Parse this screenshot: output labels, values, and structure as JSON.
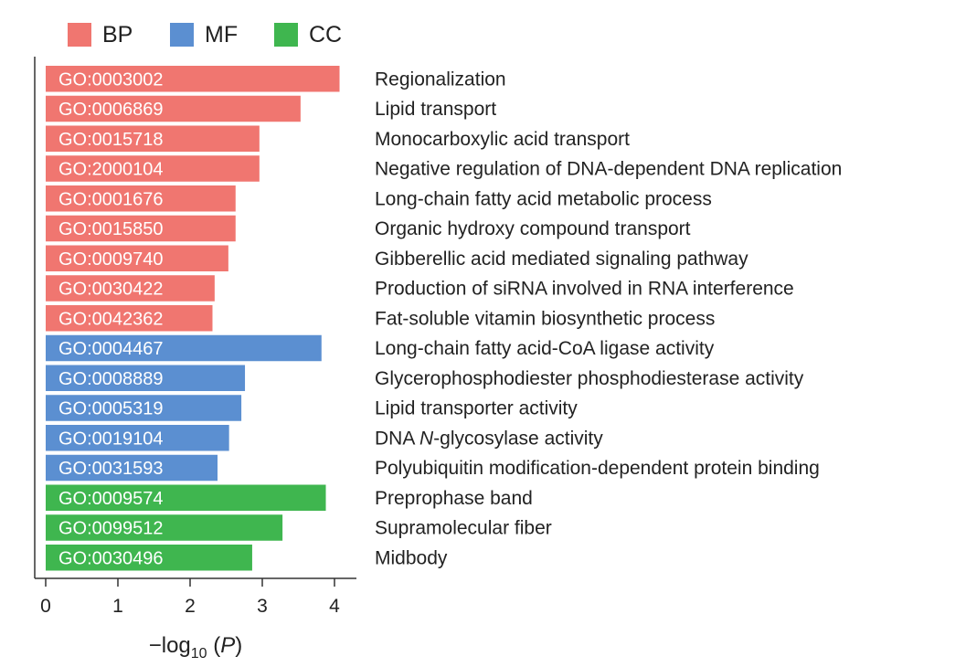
{
  "chart_data": {
    "type": "bar",
    "orientation": "horizontal",
    "title": "",
    "xlabel_parts": {
      "pre": "−log",
      "sub": "10",
      "post_open": " (",
      "italic": "P",
      "post_close": ")"
    },
    "xlim": [
      0,
      4.2
    ],
    "xticks": [
      "0",
      "1",
      "2",
      "3",
      "4"
    ],
    "legend": {
      "placement": "top-left",
      "entries": [
        {
          "key": "BP",
          "label": "BP",
          "color": "#f07670"
        },
        {
          "key": "MF",
          "label": "MF",
          "color": "#5b8fd1"
        },
        {
          "key": "CC",
          "label": "CC",
          "color": "#3fb64f"
        }
      ]
    },
    "bars": [
      {
        "id": "GO:0003002",
        "term": "Regionalization",
        "category": "BP",
        "value": 4.07
      },
      {
        "id": "GO:0006869",
        "term": "Lipid transport",
        "category": "BP",
        "value": 3.53
      },
      {
        "id": "GO:0015718",
        "term": "Monocarboxylic acid transport",
        "category": "BP",
        "value": 2.96
      },
      {
        "id": "GO:2000104",
        "term": "Negative regulation of DNA-dependent DNA replication",
        "category": "BP",
        "value": 2.96
      },
      {
        "id": "GO:0001676",
        "term": "Long-chain fatty acid metabolic process",
        "category": "BP",
        "value": 2.63
      },
      {
        "id": "GO:0015850",
        "term": "Organic hydroxy compound transport",
        "category": "BP",
        "value": 2.63
      },
      {
        "id": "GO:0009740",
        "term": "Gibberellic acid mediated signaling pathway",
        "category": "BP",
        "value": 2.53
      },
      {
        "id": "GO:0030422",
        "term": "Production of siRNA involved in RNA interference",
        "category": "BP",
        "value": 2.34
      },
      {
        "id": "GO:0042362",
        "term": "Fat-soluble vitamin biosynthetic process",
        "category": "BP",
        "value": 2.31
      },
      {
        "id": "GO:0004467",
        "term": "Long-chain fatty acid-CoA ligase activity",
        "category": "MF",
        "value": 3.82
      },
      {
        "id": "GO:0008889",
        "term": "Glycerophosphodiester phosphodiesterase activity",
        "category": "MF",
        "value": 2.76
      },
      {
        "id": "GO:0005319",
        "term": "Lipid transporter activity",
        "category": "MF",
        "value": 2.71
      },
      {
        "id": "GO:0019104",
        "term": "DNA N-glycosylase activity",
        "category": "MF",
        "value": 2.54
      },
      {
        "id": "GO:0031593",
        "term": "Polyubiquitin modification-dependent protein binding",
        "category": "MF",
        "value": 2.38
      },
      {
        "id": "GO:0009574",
        "term": "Preprophase band",
        "category": "CC",
        "value": 3.88
      },
      {
        "id": "GO:0099512",
        "term": "Supramolecular fiber",
        "category": "CC",
        "value": 3.28
      },
      {
        "id": "GO:0030496",
        "term": "Midbody",
        "category": "CC",
        "value": 2.86
      }
    ]
  }
}
